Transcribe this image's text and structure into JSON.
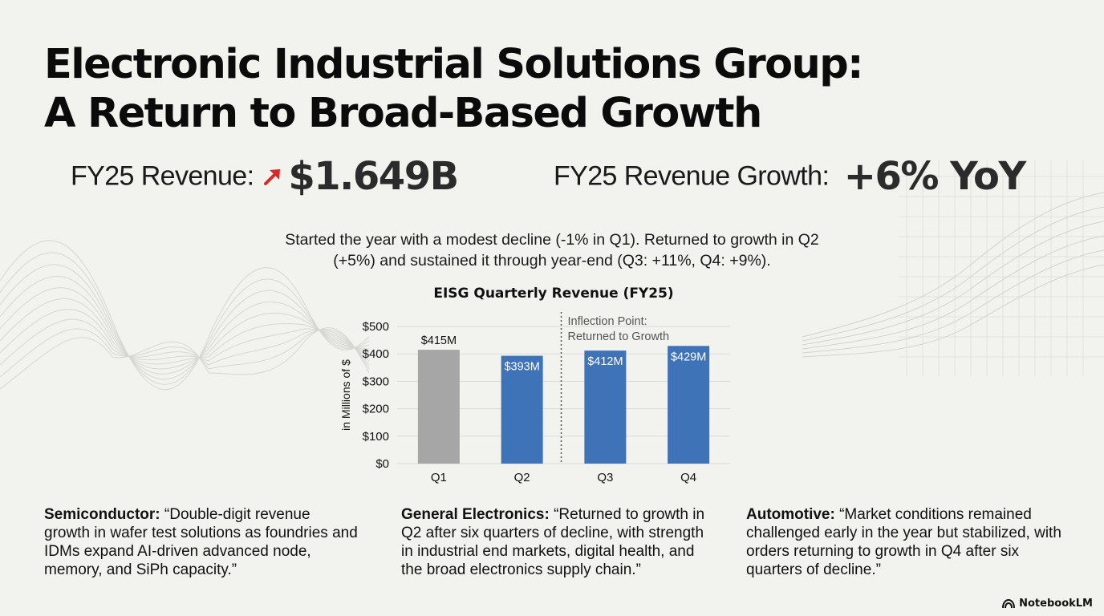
{
  "title": {
    "line1": "Electronic Industrial Solutions Group:",
    "line2": "A Return to Broad-Based Growth"
  },
  "kpis": {
    "revenue_label": "FY25 Revenue:",
    "revenue_value": "$1.649B",
    "growth_label": "FY25 Revenue Growth:",
    "growth_value": "+6% YoY"
  },
  "summary": {
    "line1": "Started the year with a modest decline (-1% in Q1). Returned to growth in Q2",
    "line2": "(+5%) and sustained it through year-end (Q3: +11%, Q4: +9%)."
  },
  "chart_data": {
    "type": "bar",
    "title": "EISG Quarterly Revenue (FY25)",
    "categories": [
      "Q1",
      "Q2",
      "Q3",
      "Q4"
    ],
    "values": [
      415,
      393,
      412,
      429
    ],
    "data_labels": [
      "$415M",
      "$393M",
      "$412M",
      "$429M"
    ],
    "bar_colors": [
      "#a6a6a6",
      "#3f73b8",
      "#3f73b8",
      "#3f73b8"
    ],
    "ylabel": "in Millions of $",
    "xlabel": "",
    "ylim": [
      0,
      500
    ],
    "yticks": [
      0,
      100,
      200,
      300,
      400,
      500
    ],
    "ytick_labels": [
      "$0",
      "$100",
      "$200",
      "$300",
      "$400",
      "$500"
    ],
    "grid": true,
    "annotation": {
      "after_category": "Q2",
      "line1": "Inflection Point:",
      "line2": "Returned to Growth"
    }
  },
  "segments": [
    {
      "name": "Semiconductor:",
      "lines": [
        "“Double-digit revenue",
        "growth in wafer test solutions as foundries and",
        "IDMs expand AI-driven advanced node,",
        "memory, and SiPh capacity.”"
      ]
    },
    {
      "name": "General Electronics:",
      "lines": [
        "“Returned to growth in",
        "Q2 after six quarters of decline, with strength",
        "in industrial end markets, digital health, and",
        "the broad electronics supply chain.”"
      ]
    },
    {
      "name": "Automotive:",
      "lines": [
        "“Market conditions remained",
        "challenged early in the year but stabilized, with",
        "orders returning to growth in Q4 after six",
        "quarters of decline.”"
      ]
    }
  ],
  "brand": {
    "name": "NotebookLM"
  },
  "colors": {
    "accent_arrow": "#d42b2b",
    "bar_blue": "#3f73b8",
    "bar_gray": "#a6a6a6",
    "background": "#f2f2ee"
  },
  "icons": {
    "kpi_arrow": "trend-up-arrow-icon",
    "brand": "notebooklm-logo-icon"
  }
}
